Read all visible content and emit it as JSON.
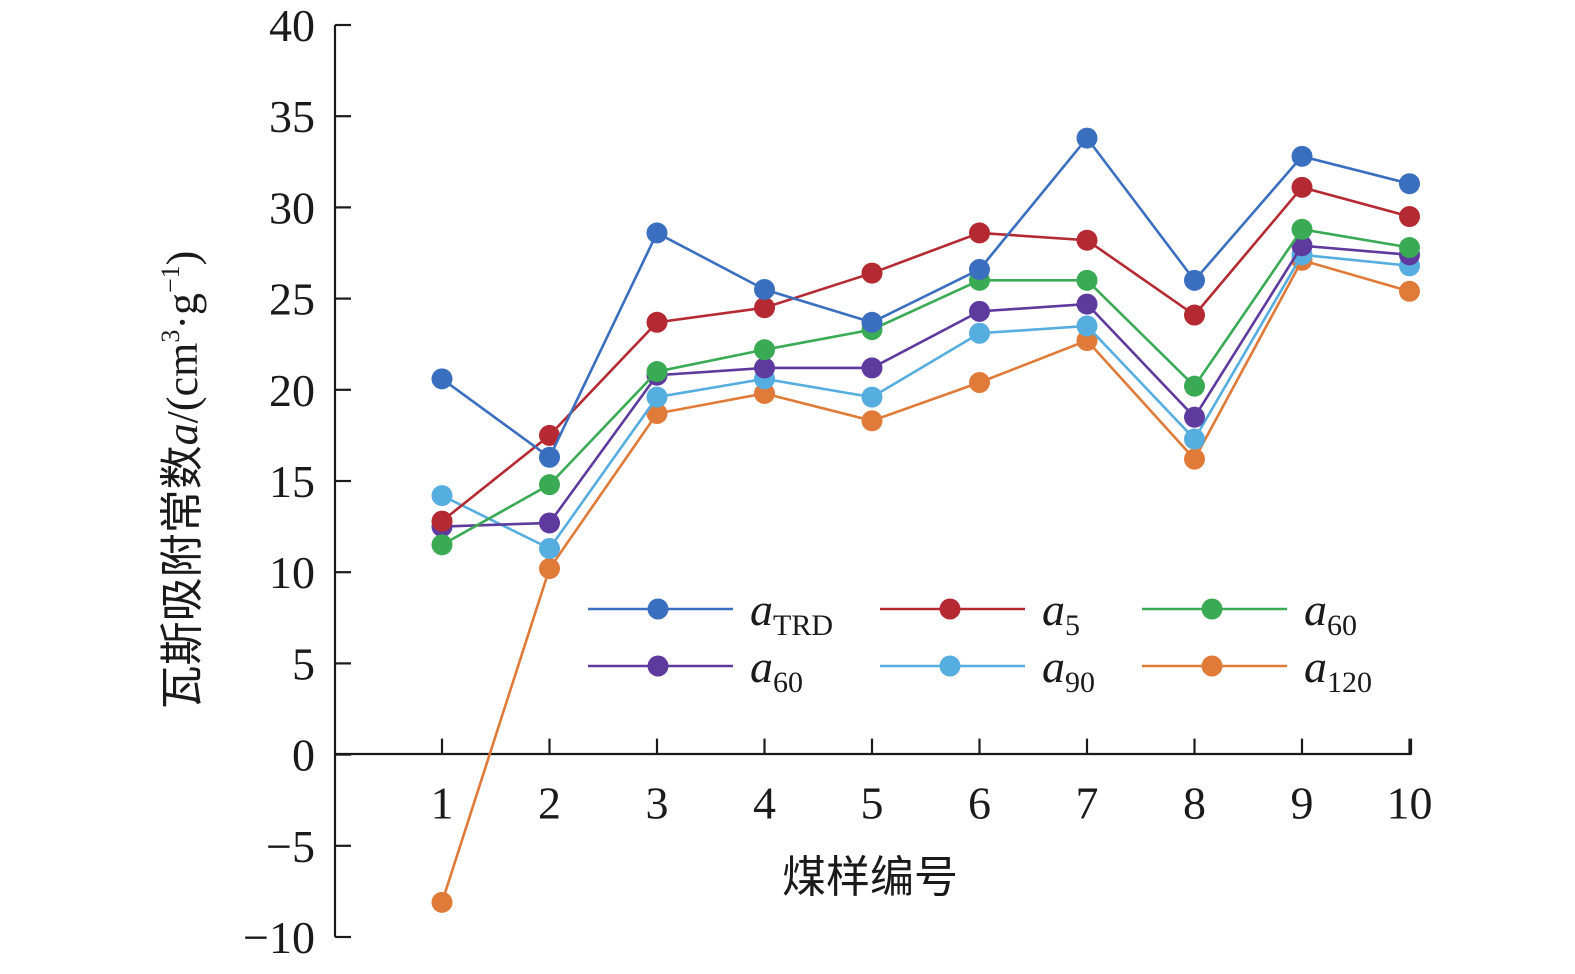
{
  "chart_data": {
    "type": "line",
    "title": "",
    "xlabel": "煤样编号",
    "ylabel": {
      "prefix": "瓦斯吸附常数",
      "var": "a",
      "unit_open": "/(cm",
      "unit_sup1": "3",
      "unit_mid": "·g",
      "unit_sup2": "−1",
      "unit_close": ")"
    },
    "x": [
      1,
      2,
      3,
      4,
      5,
      6,
      7,
      8,
      9,
      10
    ],
    "x_tick_labels": [
      "1",
      "2",
      "3",
      "4",
      "5",
      "6",
      "7",
      "8",
      "9",
      "10"
    ],
    "ylim": [
      -10,
      40
    ],
    "y_ticks": [
      -10,
      -5,
      0,
      5,
      10,
      15,
      20,
      25,
      30,
      35,
      40
    ],
    "y_tick_labels": [
      "−10",
      "−5",
      "0",
      "5",
      "10",
      "15",
      "20",
      "25",
      "30",
      "35",
      "40"
    ],
    "grid": false,
    "legend_position": "center-right",
    "series": [
      {
        "name": "aTRD",
        "label_main": "a",
        "label_sub": "TRD",
        "color": "#3a6fbf",
        "values": [
          20.6,
          16.3,
          28.6,
          25.5,
          23.7,
          26.6,
          33.8,
          26.0,
          32.8,
          31.3
        ]
      },
      {
        "name": "a5",
        "label_main": "a",
        "label_sub": "5",
        "color": "#b52a32",
        "values": [
          12.8,
          17.5,
          23.7,
          24.5,
          26.4,
          28.6,
          28.2,
          24.1,
          31.1,
          29.5
        ]
      },
      {
        "name": "a60",
        "label_main": "a",
        "label_sub": "60",
        "color": "#3aaa55",
        "values": [
          11.5,
          14.8,
          21.0,
          22.2,
          23.3,
          26.0,
          26.0,
          20.2,
          28.8,
          27.8
        ]
      },
      {
        "name": "a60",
        "label_main": "a",
        "label_sub": "60",
        "color": "#5e3a9e",
        "values": [
          12.5,
          12.7,
          20.8,
          21.2,
          21.2,
          24.3,
          24.7,
          18.5,
          27.9,
          27.4
        ]
      },
      {
        "name": "a90",
        "label_main": "a",
        "label_sub": "90",
        "color": "#56ade0",
        "values": [
          14.2,
          11.3,
          19.6,
          20.6,
          19.6,
          23.1,
          23.5,
          17.3,
          27.4,
          26.8
        ]
      },
      {
        "name": "a120",
        "label_main": "a",
        "label_sub": "120",
        "color": "#e07a38",
        "values": [
          -8.1,
          10.2,
          18.7,
          19.8,
          18.3,
          20.4,
          22.7,
          16.2,
          27.1,
          25.4
        ]
      }
    ]
  }
}
